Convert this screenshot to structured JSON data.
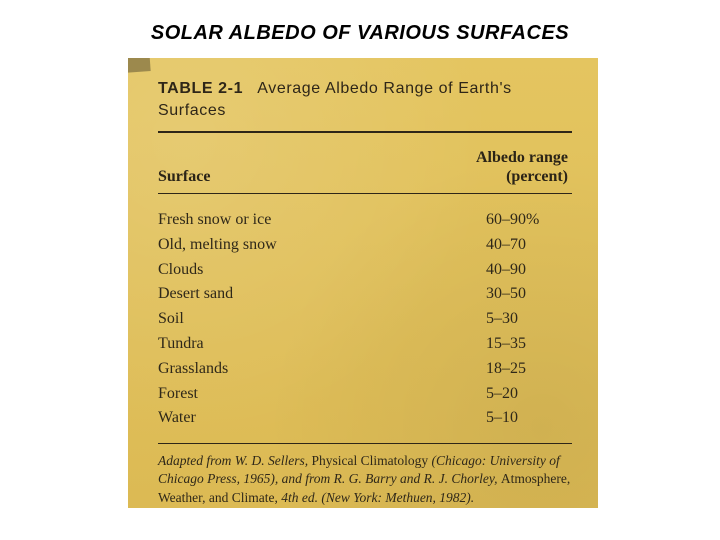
{
  "caption": "SOLAR ALBEDO OF VARIOUS SURFACES",
  "scan": {
    "background_color": "#e2c25f",
    "text_color": "#2e2618",
    "table_header": {
      "prefix": "TABLE 2-1",
      "title": "Average Albedo Range of Earth's Surfaces",
      "font_family": "sans-serif",
      "font_size_pt": 12
    },
    "columns": {
      "col1": "Surface",
      "col2_line1": "Albedo range",
      "col2_line2": "(percent)"
    },
    "rows": [
      {
        "surface": "Fresh snow or ice",
        "range": "60–90%"
      },
      {
        "surface": "Old, melting snow",
        "range": "40–70"
      },
      {
        "surface": "Clouds",
        "range": "40–90"
      },
      {
        "surface": "Desert sand",
        "range": "30–50"
      },
      {
        "surface": "Soil",
        "range": "5–30"
      },
      {
        "surface": "Tundra",
        "range": "15–35"
      },
      {
        "surface": "Grasslands",
        "range": "18–25"
      },
      {
        "surface": "Forest",
        "range": "5–20"
      },
      {
        "surface": "Water",
        "range": "5–10"
      }
    ],
    "credit": {
      "lead_italic": "Adapted from W. D. Sellers,",
      "src1_title": "Physical Climatology",
      "src1_paren": "(Chicago: University of Chicago Press, 1965), and from R. G. Barry and R. J. Chorley,",
      "src2_title": "Atmosphere, Weather, and Climate,",
      "src2_tail": "4th ed. (New York: Methuen, 1982)."
    }
  }
}
